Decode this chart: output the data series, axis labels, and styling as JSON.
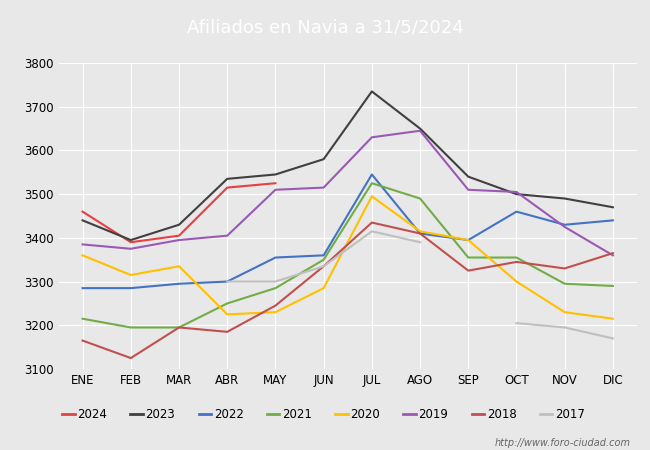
{
  "title": "Afiliados en Navia a 31/5/2024",
  "title_color": "#ffffff",
  "title_bg_color": "#4472c4",
  "months": [
    "ENE",
    "FEB",
    "MAR",
    "ABR",
    "MAY",
    "JUN",
    "JUL",
    "AGO",
    "SEP",
    "OCT",
    "NOV",
    "DIC"
  ],
  "ylim": [
    3100,
    3800
  ],
  "yticks": [
    3100,
    3200,
    3300,
    3400,
    3500,
    3600,
    3700,
    3800
  ],
  "series": {
    "2024": {
      "color": "#e84040",
      "data": [
        3460,
        3390,
        3405,
        3515,
        3525,
        null,
        null,
        null,
        null,
        null,
        null,
        null
      ]
    },
    "2023": {
      "color": "#404040",
      "data": [
        3440,
        3395,
        3430,
        3535,
        3545,
        3580,
        3735,
        3650,
        3540,
        3500,
        3490,
        3470
      ]
    },
    "2022": {
      "color": "#4472c4",
      "data": [
        3285,
        3285,
        3295,
        3300,
        3355,
        3360,
        3545,
        3410,
        3395,
        3460,
        3430,
        3440
      ]
    },
    "2021": {
      "color": "#70ad47",
      "data": [
        3215,
        3195,
        3195,
        3250,
        3285,
        3350,
        3525,
        3490,
        3355,
        3355,
        3295,
        3290
      ]
    },
    "2020": {
      "color": "#ffc000",
      "data": [
        3360,
        3315,
        3335,
        3225,
        3230,
        3285,
        3495,
        3415,
        3395,
        3300,
        3230,
        3215
      ]
    },
    "2019": {
      "color": "#9b59b6",
      "data": [
        3385,
        3375,
        3395,
        3405,
        3510,
        3515,
        3630,
        3645,
        3510,
        3505,
        3425,
        3360
      ]
    },
    "2018": {
      "color": "#c0504d",
      "data": [
        3165,
        3125,
        3195,
        3185,
        3245,
        3335,
        3435,
        3410,
        3325,
        3345,
        3330,
        3365
      ]
    },
    "2017": {
      "color": "#bfbfbf",
      "data": [
        null,
        null,
        null,
        3300,
        3300,
        3335,
        3415,
        3390,
        null,
        3205,
        3195,
        3170
      ]
    }
  },
  "legend_order": [
    "2024",
    "2023",
    "2022",
    "2021",
    "2020",
    "2019",
    "2018",
    "2017"
  ],
  "watermark": "http://www.foro-ciudad.com",
  "outer_bg_color": "#d0d0d0",
  "inner_bg_color": "#e8e8e8",
  "plot_bg_color": "#e8e8e8",
  "grid_color": "#ffffff"
}
